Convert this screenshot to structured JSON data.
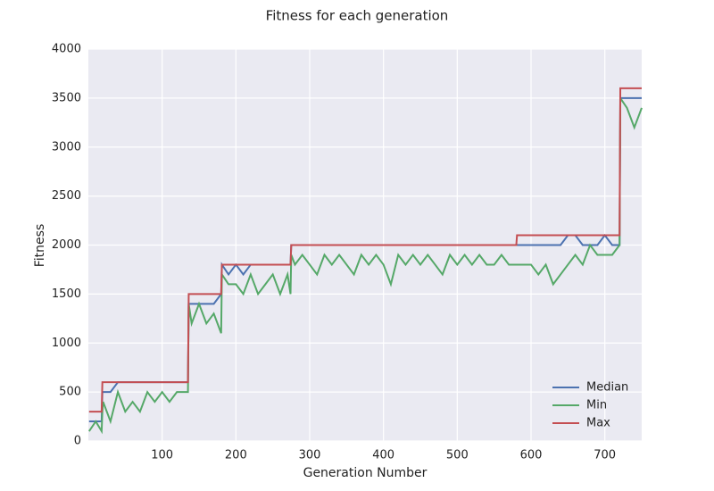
{
  "chart_data": {
    "type": "line",
    "title": "Fitness for each generation",
    "x_label": "Generation Number",
    "y_label": "Fitness",
    "x": [
      1,
      10,
      18,
      19,
      20,
      30,
      40,
      50,
      60,
      70,
      80,
      90,
      100,
      110,
      120,
      130,
      135,
      136,
      140,
      150,
      160,
      170,
      180,
      181,
      190,
      200,
      210,
      220,
      230,
      240,
      250,
      260,
      270,
      274,
      275,
      280,
      290,
      300,
      310,
      320,
      330,
      340,
      350,
      360,
      370,
      380,
      390,
      400,
      410,
      420,
      430,
      440,
      450,
      460,
      470,
      480,
      490,
      500,
      510,
      520,
      530,
      540,
      550,
      560,
      570,
      580,
      581,
      590,
      600,
      610,
      620,
      630,
      640,
      650,
      660,
      670,
      680,
      690,
      700,
      710,
      720,
      721,
      730,
      740,
      750
    ],
    "series": [
      {
        "name": "Median",
        "color": "#4c72b0",
        "values": [
          200,
          200,
          200,
          500,
          500,
          500,
          600,
          600,
          600,
          600,
          600,
          600,
          600,
          600,
          600,
          600,
          600,
          1400,
          1400,
          1400,
          1400,
          1400,
          1500,
          1800,
          1700,
          1800,
          1700,
          1800,
          1800,
          1800,
          1800,
          1800,
          1800,
          1800,
          2000,
          2000,
          2000,
          2000,
          2000,
          2000,
          2000,
          2000,
          2000,
          2000,
          2000,
          2000,
          2000,
          2000,
          2000,
          2000,
          2000,
          2000,
          2000,
          2000,
          2000,
          2000,
          2000,
          2000,
          2000,
          2000,
          2000,
          2000,
          2000,
          2000,
          2000,
          2000,
          2000,
          2000,
          2000,
          2000,
          2000,
          2000,
          2000,
          2100,
          2100,
          2000,
          2000,
          2000,
          2100,
          2000,
          2000,
          3500,
          3500,
          3500,
          3500
        ]
      },
      {
        "name": "Min",
        "color": "#55a868",
        "values": [
          100,
          200,
          100,
          300,
          400,
          200,
          500,
          300,
          400,
          300,
          500,
          400,
          500,
          400,
          500,
          500,
          500,
          1400,
          1200,
          1400,
          1200,
          1300,
          1100,
          1700,
          1600,
          1600,
          1500,
          1700,
          1500,
          1600,
          1700,
          1500,
          1700,
          1500,
          1900,
          1800,
          1900,
          1800,
          1700,
          1900,
          1800,
          1900,
          1800,
          1700,
          1900,
          1800,
          1900,
          1800,
          1600,
          1900,
          1800,
          1900,
          1800,
          1900,
          1800,
          1700,
          1900,
          1800,
          1900,
          1800,
          1900,
          1800,
          1800,
          1900,
          1800,
          1800,
          1800,
          1800,
          1800,
          1700,
          1800,
          1600,
          1700,
          1800,
          1900,
          1800,
          2000,
          1900,
          1900,
          1900,
          2000,
          3500,
          3400,
          3200,
          3400
        ]
      },
      {
        "name": "Max",
        "color": "#c44e52",
        "values": [
          300,
          300,
          300,
          600,
          600,
          600,
          600,
          600,
          600,
          600,
          600,
          600,
          600,
          600,
          600,
          600,
          600,
          1500,
          1500,
          1500,
          1500,
          1500,
          1500,
          1800,
          1800,
          1800,
          1800,
          1800,
          1800,
          1800,
          1800,
          1800,
          1800,
          1800,
          2000,
          2000,
          2000,
          2000,
          2000,
          2000,
          2000,
          2000,
          2000,
          2000,
          2000,
          2000,
          2000,
          2000,
          2000,
          2000,
          2000,
          2000,
          2000,
          2000,
          2000,
          2000,
          2000,
          2000,
          2000,
          2000,
          2000,
          2000,
          2000,
          2000,
          2000,
          2000,
          2100,
          2100,
          2100,
          2100,
          2100,
          2100,
          2100,
          2100,
          2100,
          2100,
          2100,
          2100,
          2100,
          2100,
          2100,
          3600,
          3600,
          3600,
          3600
        ]
      }
    ],
    "xlim": [
      0,
      750
    ],
    "xticks": [
      100,
      200,
      300,
      400,
      500,
      600,
      700
    ],
    "ylim": [
      0,
      4000
    ],
    "yticks": [
      0,
      500,
      1000,
      1500,
      2000,
      2500,
      3000,
      3500,
      4000
    ],
    "grid": true,
    "legend": "lower right"
  }
}
